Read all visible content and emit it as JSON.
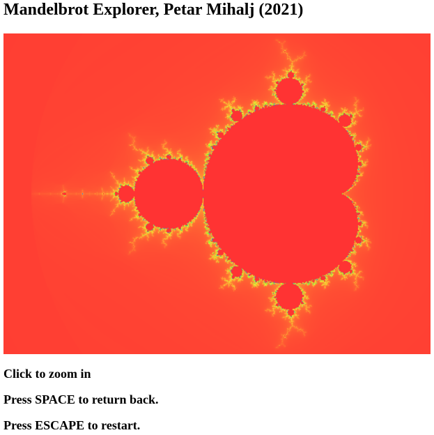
{
  "page": {
    "title": "Mandelbrot Explorer, Petar Mihalj (2021)"
  },
  "viewer": {
    "fractal": "mandelbrot",
    "palette": {
      "interior": "#ff3333",
      "far": "#ff3b33",
      "near": "#ffab33",
      "edge_yellow": "#e6ff33",
      "edge_green": "#66ff33",
      "edge_blue": "#3366ff"
    }
  },
  "instructions": [
    "Click to zoom in",
    "Press SPACE to return back.",
    "Press ESCAPE to restart."
  ]
}
